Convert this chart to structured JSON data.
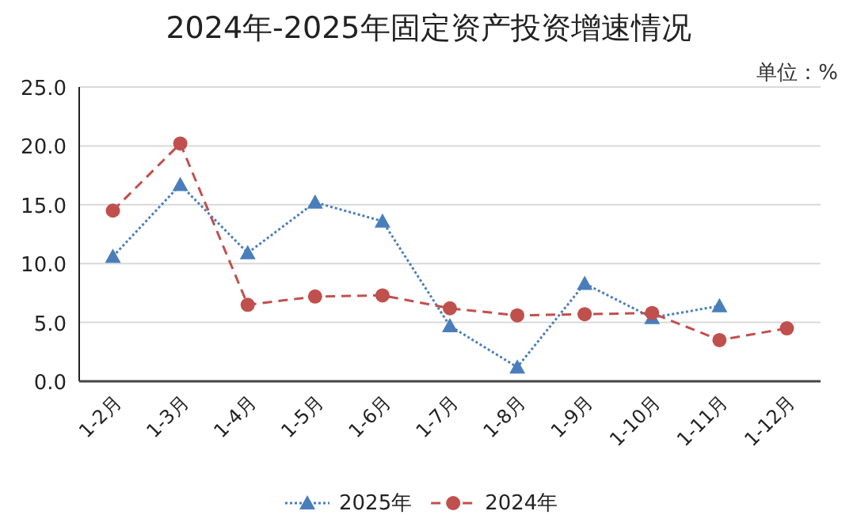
{
  "chart_data": {
    "type": "line",
    "title": "2024年-2025年固定资产投资增速情况",
    "annotations": [
      "单位：%"
    ],
    "categories": [
      "1-2月",
      "1-3月",
      "1-4月",
      "1-5月",
      "1-6月",
      "1-7月",
      "1-8月",
      "1-9月",
      "1-10月",
      "1-11月",
      "1-12月"
    ],
    "series": [
      {
        "name": "2025年",
        "color": "#4a7ebb",
        "marker": "triangle",
        "line_style": "dotted",
        "values": [
          10.6,
          16.7,
          10.9,
          15.2,
          13.6,
          4.7,
          1.2,
          8.3,
          5.4,
          6.4,
          null
        ]
      },
      {
        "name": "2024年",
        "color": "#c0504d",
        "marker": "circle",
        "line_style": "dashed",
        "values": [
          14.5,
          20.2,
          6.5,
          7.2,
          7.3,
          6.2,
          5.6,
          5.7,
          5.8,
          3.5,
          4.5
        ]
      }
    ],
    "ylim": [
      0,
      25
    ],
    "yticks": [
      {
        "value": 0,
        "label": "0.0"
      },
      {
        "value": 5,
        "label": "5.0"
      },
      {
        "value": 10,
        "label": "10.0"
      },
      {
        "value": 15,
        "label": "15.0"
      },
      {
        "value": 20,
        "label": "20.0"
      },
      {
        "value": 25,
        "label": "25.0"
      }
    ],
    "grid": "y",
    "legend": "bottom"
  }
}
